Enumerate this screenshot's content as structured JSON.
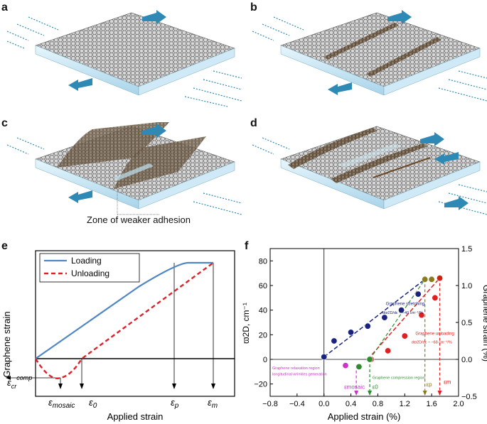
{
  "panels": {
    "a": {
      "label": "a"
    },
    "b": {
      "label": "b"
    },
    "c": {
      "label": "c",
      "annotation": "Zone of weaker adhesion"
    },
    "d": {
      "label": "d"
    },
    "e": {
      "label": "e"
    },
    "f": {
      "label": "f"
    }
  },
  "colors": {
    "sheet": "#6b6b6b",
    "substrate_side": "#bfe3f2",
    "arrow": "#2e8ab4",
    "wrinkle": "#6b4a2a",
    "loading": "#4f86c6",
    "unloading": "#e0202a"
  },
  "chart_data": [
    {
      "type": "line",
      "title": "",
      "ylabel": "Graphene strain",
      "xlabel": "Applied strain",
      "legend": [
        "Loading",
        "Unloading"
      ],
      "legend_placement": "top-left",
      "x_markers": [
        "ε_mosaic",
        "ε_0",
        "ε_p",
        "ε_m"
      ],
      "y_marker": "ε_cr^comp",
      "series": [
        {
          "name": "Loading",
          "style": "solid",
          "color": "#4f86c6",
          "x": [
            0,
            0.58,
            0.78,
            0.86,
            1.0
          ],
          "y": [
            0,
            0.75,
            0.98,
            1.0,
            1.0
          ]
        },
        {
          "name": "Unloading",
          "style": "dashed",
          "color": "#e0202a",
          "x": [
            0,
            0.06,
            0.14,
            0.26,
            1.0
          ],
          "y": [
            0,
            -0.16,
            -0.2,
            0,
            1.0
          ]
        }
      ]
    },
    {
      "type": "scatter",
      "title": "",
      "xlabel": "Applied strain (%)",
      "ylabel_left": "ϖ2D, cm⁻¹",
      "ylabel_right": "Graphene strain (%)",
      "xlim": [
        -0.8,
        2.0
      ],
      "ylim_left": [
        -30,
        90
      ],
      "ylim_right": [
        -0.5,
        1.5
      ],
      "xticks": [
        "−0.8",
        "−0.4",
        "0.0",
        "0.4",
        "0.8",
        "1.2",
        "1.6",
        "2.0"
      ],
      "yticks_left": [
        "−20",
        "0",
        "20",
        "40",
        "60",
        "80"
      ],
      "yticks_right": [
        "−0.5",
        "0.0",
        "0.5",
        "1.0",
        "1.5"
      ],
      "series": [
        {
          "name": "Graphene stretching",
          "color": "#1a237e",
          "x": [
            0.0,
            0.15,
            0.4,
            0.65,
            0.9,
            1.15,
            1.4
          ],
          "y": [
            2,
            15,
            22,
            27,
            34,
            40,
            53
          ]
        },
        {
          "name": "Graphene unloading",
          "color": "#e02020",
          "x": [
            0.7,
            0.95,
            1.2,
            1.45,
            1.65
          ],
          "y": [
            0,
            7,
            19,
            36,
            50
          ]
        },
        {
          "name": "Relaxation",
          "color": "#cc33cc",
          "x": [
            0.32
          ],
          "y": [
            -5
          ]
        },
        {
          "name": "Compression",
          "color": "#2e8b2e",
          "x": [
            0.52,
            0.68
          ],
          "y": [
            -6,
            0
          ]
        },
        {
          "name": "Peak",
          "color": "#8a7a20",
          "x": [
            1.5,
            1.6
          ],
          "y": [
            65,
            65
          ]
        },
        {
          "name": "Peak-red",
          "color": "#d02010",
          "x": [
            1.72
          ],
          "y": [
            66
          ]
        }
      ],
      "annotations": {
        "stretching_title": "Graphene stretching",
        "stretching_slope": "dϖ2D/dε ~ −40 cm⁻¹/%",
        "unloading_title": "Graphene unloading",
        "unloading_slope": "dϖ2D/dε ~ −68 cm⁻¹/%",
        "relax_1": "Graphene relaxation region",
        "relax_2": "longitudinal wrinkles generation",
        "compression": "Graphene compression region",
        "m_mosaic": "εmosaic",
        "m_0": "ε0",
        "m_p": "εp",
        "m_m": "εm"
      }
    }
  ]
}
